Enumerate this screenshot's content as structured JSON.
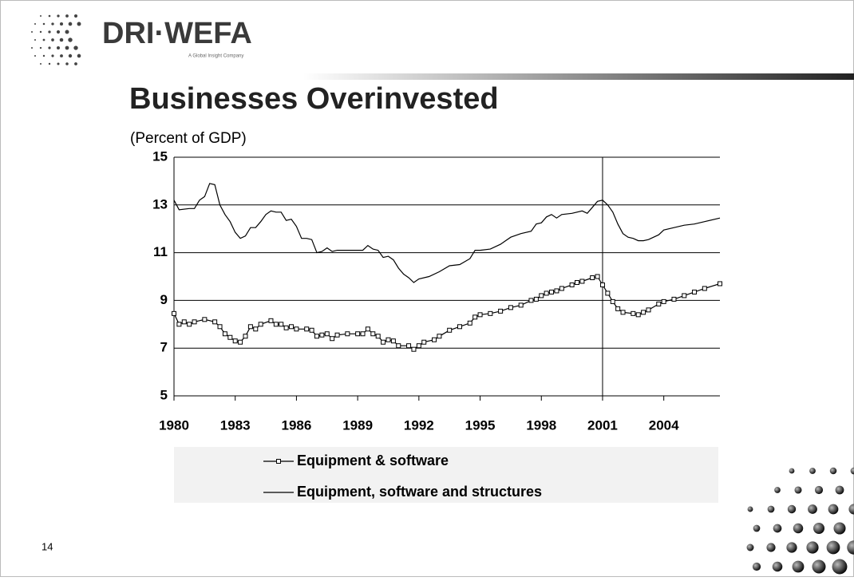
{
  "brand": {
    "name": "DRI·WEFA",
    "tagline": "A Global Insight Company"
  },
  "page_number": "14",
  "chart_data": {
    "type": "line",
    "title": "Businesses Overinvested",
    "subtitle": "(Percent of GDP)",
    "xlim": [
      1980,
      2006.75
    ],
    "xticks": [
      1980,
      1983,
      1986,
      1989,
      1992,
      1995,
      1998,
      2001,
      2004
    ],
    "ylim": [
      5,
      15
    ],
    "yticks": [
      5,
      7,
      9,
      11,
      13,
      15
    ],
    "grid": true,
    "vline": 2001,
    "series": [
      {
        "name": "Equipment & software",
        "color": "#000000",
        "marker": "square",
        "x": [
          1980,
          1980.25,
          1980.5,
          1980.75,
          1981,
          1981.5,
          1982,
          1982.25,
          1982.5,
          1982.75,
          1983,
          1983.25,
          1983.5,
          1983.75,
          1984,
          1984.25,
          1984.75,
          1985,
          1985.25,
          1985.5,
          1985.75,
          1986,
          1986.5,
          1986.75,
          1987,
          1987.25,
          1987.5,
          1987.75,
          1988,
          1988.5,
          1989,
          1989.25,
          1989.5,
          1989.75,
          1990,
          1990.25,
          1990.5,
          1990.75,
          1991,
          1991.5,
          1991.75,
          1992,
          1992.25,
          1992.75,
          1993,
          1993.5,
          1994,
          1994.5,
          1994.75,
          1995,
          1995.5,
          1996,
          1996.5,
          1997,
          1997.5,
          1997.75,
          1998,
          1998.25,
          1998.5,
          1998.75,
          1999,
          1999.5,
          1999.75,
          2000,
          2000.5,
          2000.75,
          2001,
          2001.25,
          2001.5,
          2001.75,
          2002,
          2002.5,
          2002.75,
          2003,
          2003.25,
          2003.75,
          2004,
          2004.5,
          2005,
          2005.5,
          2006,
          2006.75
        ],
        "values": [
          8.45,
          8.0,
          8.1,
          8.0,
          8.1,
          8.2,
          8.1,
          7.9,
          7.6,
          7.45,
          7.3,
          7.25,
          7.5,
          7.9,
          7.8,
          8.0,
          8.15,
          8.0,
          8.0,
          7.85,
          7.9,
          7.8,
          7.8,
          7.75,
          7.5,
          7.55,
          7.6,
          7.4,
          7.55,
          7.6,
          7.6,
          7.6,
          7.8,
          7.6,
          7.5,
          7.25,
          7.35,
          7.3,
          7.1,
          7.1,
          6.95,
          7.1,
          7.25,
          7.35,
          7.5,
          7.75,
          7.9,
          8.05,
          8.3,
          8.4,
          8.45,
          8.55,
          8.7,
          8.8,
          9.0,
          9.05,
          9.2,
          9.3,
          9.35,
          9.4,
          9.5,
          9.65,
          9.75,
          9.8,
          9.95,
          10.0,
          9.65,
          9.3,
          8.95,
          8.65,
          8.5,
          8.45,
          8.4,
          8.5,
          8.6,
          8.85,
          8.95,
          9.05,
          9.2,
          9.35,
          9.5,
          9.7
        ]
      },
      {
        "name": "Equipment, software and structures",
        "color": "#000000",
        "x": [
          1980,
          1980.25,
          1980.75,
          1981,
          1981.25,
          1981.5,
          1981.75,
          1982,
          1982.25,
          1982.5,
          1982.75,
          1983,
          1983.25,
          1983.5,
          1983.75,
          1984,
          1984.25,
          1984.5,
          1984.75,
          1985,
          1985.25,
          1985.5,
          1985.75,
          1986,
          1986.25,
          1986.5,
          1986.75,
          1987,
          1987.25,
          1987.5,
          1987.75,
          1988,
          1988.5,
          1989,
          1989.25,
          1989.5,
          1989.75,
          1990,
          1990.25,
          1990.5,
          1990.75,
          1991,
          1991.25,
          1991.5,
          1991.75,
          1992,
          1992.5,
          1993,
          1993.5,
          1994,
          1994.5,
          1994.75,
          1995,
          1995.5,
          1996,
          1996.5,
          1997,
          1997.5,
          1997.75,
          1998,
          1998.25,
          1998.5,
          1998.75,
          1999,
          1999.5,
          2000,
          2000.25,
          2000.5,
          2000.75,
          2001,
          2001.25,
          2001.5,
          2001.75,
          2002,
          2002.25,
          2002.5,
          2002.75,
          2003,
          2003.25,
          2003.75,
          2004,
          2004.5,
          2005,
          2005.5,
          2006,
          2006.75
        ],
        "values": [
          13.2,
          12.8,
          12.85,
          12.85,
          13.2,
          13.35,
          13.9,
          13.85,
          13.0,
          12.6,
          12.3,
          11.85,
          11.6,
          11.7,
          12.05,
          12.05,
          12.3,
          12.6,
          12.75,
          12.7,
          12.7,
          12.35,
          12.4,
          12.1,
          11.6,
          11.6,
          11.55,
          11.0,
          11.05,
          11.2,
          11.05,
          11.1,
          11.1,
          11.1,
          11.1,
          11.3,
          11.15,
          11.1,
          10.8,
          10.85,
          10.7,
          10.35,
          10.1,
          9.95,
          9.75,
          9.9,
          10.0,
          10.2,
          10.45,
          10.5,
          10.75,
          11.1,
          11.1,
          11.15,
          11.35,
          11.65,
          11.8,
          11.9,
          12.2,
          12.25,
          12.5,
          12.6,
          12.45,
          12.6,
          12.65,
          12.75,
          12.65,
          12.9,
          13.15,
          13.2,
          13.0,
          12.7,
          12.2,
          11.8,
          11.65,
          11.6,
          11.5,
          11.5,
          11.55,
          11.75,
          11.95,
          12.05,
          12.15,
          12.2,
          12.3,
          12.45
        ]
      }
    ]
  }
}
